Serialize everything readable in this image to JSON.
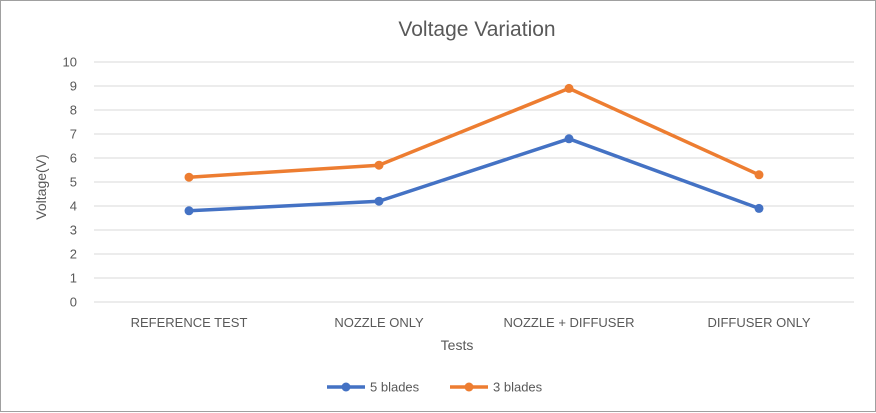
{
  "chart_data": {
    "type": "line",
    "title": "Voltage Variation",
    "xlabel": "Tests",
    "ylabel": "Voltage(V)",
    "categories": [
      "REFERENCE TEST",
      "NOZZLE ONLY",
      "NOZZLE + DIFFUSER",
      "DIFFUSER ONLY"
    ],
    "ylim": [
      0,
      10
    ],
    "yticks": [
      "0",
      "1",
      "2",
      "3",
      "4",
      "5",
      "6",
      "7",
      "8",
      "9",
      "10"
    ],
    "grid": true,
    "legend_position": "bottom",
    "series": [
      {
        "name": "5 blades",
        "color": "#4472c4",
        "values": [
          3.8,
          4.2,
          6.8,
          3.9
        ]
      },
      {
        "name": "3 blades",
        "color": "#ed7d31",
        "values": [
          5.2,
          5.7,
          8.9,
          5.3
        ]
      }
    ]
  }
}
